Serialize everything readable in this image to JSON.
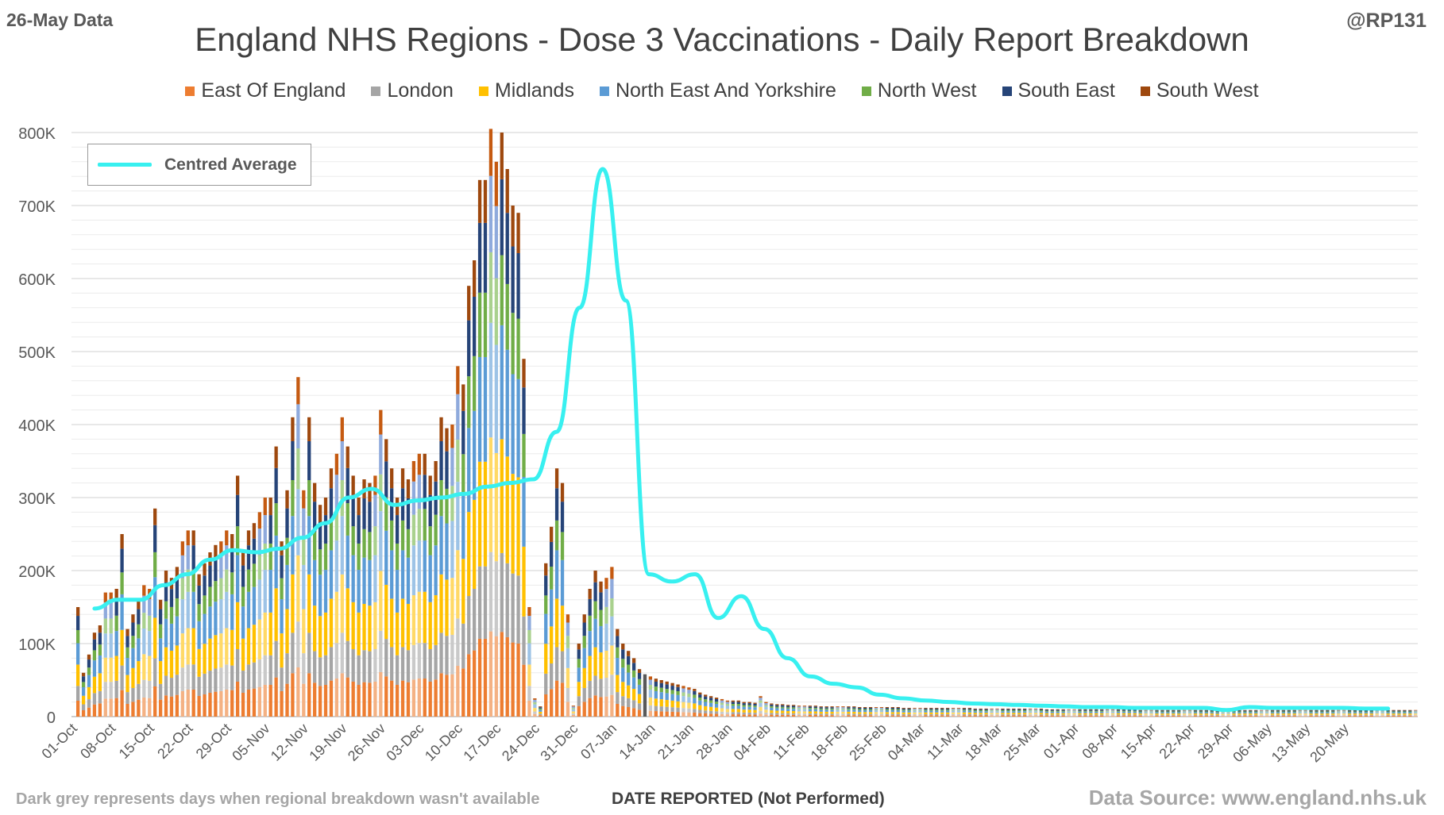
{
  "header": {
    "data_date": "26-May Data",
    "handle": "@RP131",
    "title": "England NHS Regions - Dose 3 Vaccinations - Daily Report Breakdown"
  },
  "legend": [
    {
      "name": "East Of England",
      "color": "#ed7d31"
    },
    {
      "name": "London",
      "color": "#a5a5a5"
    },
    {
      "name": "Midlands",
      "color": "#ffc000"
    },
    {
      "name": "North East And Yorkshire",
      "color": "#5b9bd5"
    },
    {
      "name": "North West",
      "color": "#70ad47"
    },
    {
      "name": "South East",
      "color": "#264478"
    },
    {
      "name": "South West",
      "color": "#9e480e"
    }
  ],
  "average_legend": {
    "label": "Centred Average",
    "color": "#38f0f0"
  },
  "footer": {
    "note": "Dark grey represents days when regional breakdown wasn't available",
    "xlabel": "DATE REPORTED (Not Performed)",
    "source": "Data Source: www.england.nhs.uk"
  },
  "chart_data": {
    "type": "bar",
    "stacked": true,
    "title": "England NHS Regions - Dose 3 Vaccinations - Daily Report Breakdown",
    "xlabel": "DATE REPORTED (Not Performed)",
    "ylabel": "",
    "ylim": [
      0,
      800000
    ],
    "y_ticks": [
      "0",
      "100K",
      "200K",
      "300K",
      "400K",
      "500K",
      "600K",
      "700K",
      "800K"
    ],
    "x_tick_labels": [
      "01-Oct",
      "08-Oct",
      "15-Oct",
      "22-Oct",
      "29-Oct",
      "05-Nov",
      "12-Nov",
      "19-Nov",
      "26-Nov",
      "03-Dec",
      "10-Dec",
      "17-Dec",
      "24-Dec",
      "31-Dec",
      "07-Jan",
      "14-Jan",
      "21-Jan",
      "28-Jan",
      "04-Feb",
      "11-Feb",
      "18-Feb",
      "25-Feb",
      "04-Mar",
      "11-Mar",
      "18-Mar",
      "25-Mar",
      "01-Apr",
      "08-Apr",
      "15-Apr",
      "22-Apr",
      "29-Apr",
      "06-May",
      "13-May",
      "20-May"
    ],
    "grid": "horizontal",
    "legend_position": "top",
    "region_shares": [
      0.145,
      0.135,
      0.195,
      0.195,
      0.12,
      0.13,
      0.08
    ],
    "weekly_totals_k": [
      [
        150,
        60,
        85,
        115,
        125,
        170,
        170
      ],
      [
        175,
        250,
        120,
        140,
        160,
        180,
        175
      ],
      [
        285,
        160,
        200,
        190,
        205,
        240,
        255
      ],
      [
        255,
        195,
        210,
        225,
        235,
        240,
        255
      ],
      [
        250,
        330,
        225,
        255,
        265,
        280,
        300
      ],
      [
        300,
        370,
        240,
        310,
        410,
        465,
        310
      ],
      [
        410,
        320,
        290,
        300,
        340,
        360,
        410
      ],
      [
        370,
        330,
        300,
        325,
        320,
        330,
        420
      ],
      [
        380,
        340,
        300,
        340,
        325,
        350,
        360
      ],
      [
        360,
        330,
        350,
        410,
        395,
        400,
        480
      ],
      [
        455,
        590,
        625,
        735,
        735,
        805,
        760
      ],
      [
        800,
        750,
        700,
        690,
        490,
        150,
        25
      ],
      [
        14,
        210,
        260,
        340,
        320,
        140,
        15
      ],
      [
        100,
        140,
        175,
        200,
        185,
        190,
        205
      ],
      [
        120,
        100,
        90,
        80,
        65,
        58,
        55
      ],
      [
        52,
        50,
        48,
        46,
        44,
        42,
        40
      ],
      [
        38,
        33,
        30,
        28,
        26,
        24,
        22
      ],
      [
        22,
        22,
        20,
        20,
        19,
        28,
        20
      ],
      [
        18,
        17,
        17,
        16,
        16,
        15,
        15
      ],
      [
        15,
        15,
        14,
        14,
        14,
        14,
        14
      ],
      [
        14,
        14,
        13,
        13,
        13,
        13,
        13
      ],
      [
        13,
        13,
        13,
        12,
        12,
        12,
        12
      ],
      [
        12,
        12,
        12,
        12,
        12,
        12,
        12
      ],
      [
        12,
        12,
        11,
        11,
        11,
        11,
        11
      ],
      [
        11,
        11,
        11,
        11,
        11,
        11,
        11
      ],
      [
        11,
        10,
        10,
        10,
        10,
        10,
        10
      ],
      [
        10,
        10,
        10,
        10,
        10,
        10,
        10
      ],
      [
        10,
        10,
        10,
        10,
        9,
        9,
        9
      ],
      [
        9,
        9,
        9,
        9,
        9,
        9,
        9
      ],
      [
        9,
        9,
        9,
        9,
        8,
        8,
        8
      ]
    ],
    "centred_average_k": [
      148,
      160,
      160,
      180,
      195,
      215,
      228,
      225,
      230,
      245,
      265,
      300,
      312,
      290,
      296,
      300,
      305,
      315,
      320,
      325,
      390,
      560,
      750,
      570,
      195,
      185,
      195,
      135,
      165,
      120,
      80,
      55,
      45,
      40,
      30,
      25,
      22,
      20,
      18,
      17,
      16,
      15,
      14,
      13,
      13,
      12,
      12,
      12,
      12,
      9,
      13,
      12,
      12,
      12,
      12,
      11,
      11
    ]
  }
}
